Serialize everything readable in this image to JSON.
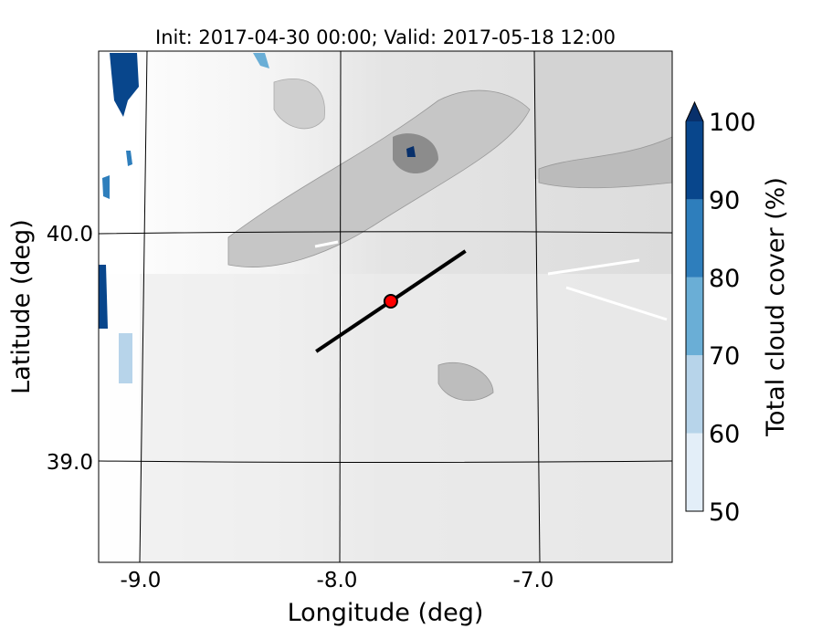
{
  "chart_data": {
    "type": "map",
    "title": "Init: 2017-04-30 00:00; Valid: 2017-05-18 12:00",
    "xlabel": "Longitude (deg)",
    "ylabel": "Latitude (deg)",
    "xlim": [
      -9.25,
      -6.35
    ],
    "ylim": [
      38.55,
      40.8
    ],
    "x_ticks": [
      {
        "value": -9.0,
        "label": "-9.0"
      },
      {
        "value": -8.0,
        "label": "-8.0"
      },
      {
        "value": -7.0,
        "label": "-7.0"
      }
    ],
    "y_ticks": [
      {
        "value": 39.0,
        "label": "39.0"
      },
      {
        "value": 40.0,
        "label": "40.0"
      }
    ],
    "grid": true,
    "background_field": "terrain height (grayscale contours)",
    "colorbar": {
      "label": "Total cloud cover (%)",
      "ticks": [
        "50",
        "60",
        "70",
        "80",
        "90",
        "100"
      ],
      "levels": [
        50,
        60,
        70,
        80,
        90,
        100
      ],
      "colors": [
        "#e3eef8",
        "#b7d4ea",
        "#6aaed6",
        "#2e7ebc",
        "#08468c"
      ],
      "extend_max_color": "#08306b",
      "extend": "max"
    },
    "cross_section": {
      "start": [
        -8.12,
        39.48
      ],
      "end": [
        -7.36,
        39.92
      ],
      "color": "#000000"
    },
    "marker": {
      "lon": -7.74,
      "lat": 39.7,
      "color": "#ff0000"
    }
  }
}
